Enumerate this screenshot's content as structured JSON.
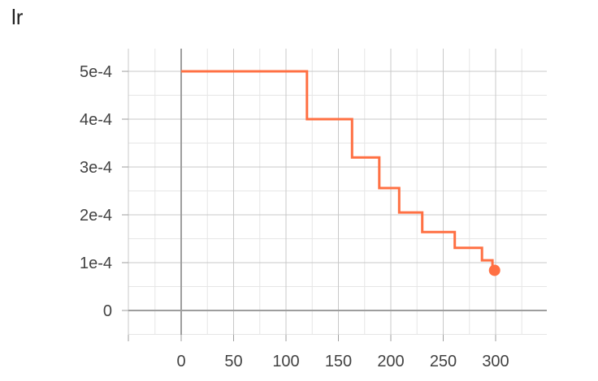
{
  "title": "lr",
  "chart_data": {
    "type": "line",
    "title": "lr",
    "xlabel": "",
    "ylabel": "",
    "xlim": [
      -50,
      350
    ],
    "ylim": [
      -5e-05,
      0.00055
    ],
    "grid": true,
    "x_ticks": [
      0,
      50,
      100,
      150,
      200,
      250,
      300
    ],
    "x_tick_labels": [
      "0",
      "50",
      "100",
      "150",
      "200",
      "250",
      "300"
    ],
    "y_ticks": [
      0,
      0.0001,
      0.0002,
      0.0003,
      0.0004,
      0.0005
    ],
    "y_tick_labels": [
      "0",
      "1e-4",
      "2e-4",
      "3e-4",
      "4e-4",
      "5e-4"
    ],
    "series": [
      {
        "color": "#ff7043",
        "step": true,
        "x": [
          0,
          120,
          120,
          163,
          163,
          189,
          189,
          208,
          208,
          230,
          230,
          261,
          261,
          287,
          287,
          297,
          297
        ],
        "y": [
          0.0005,
          0.0005,
          0.0004,
          0.0004,
          0.00032,
          0.00032,
          0.000256,
          0.000256,
          0.000205,
          0.000205,
          0.000164,
          0.000164,
          0.000131,
          0.000131,
          0.000105,
          0.000105,
          8.4e-05
        ],
        "last_point": {
          "x": 299,
          "y": 8.4e-05
        }
      }
    ]
  }
}
